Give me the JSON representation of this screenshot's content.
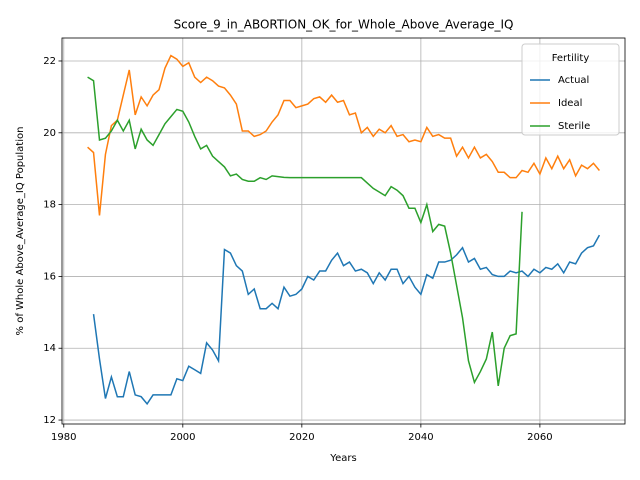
{
  "chart_data": {
    "type": "line",
    "title": "Score_9_in_ABORTION_OK_for_Whole_Above_Average_IQ",
    "x_label": "Years",
    "y_label": "% of Whole Above_Average_IQ Population",
    "legend_title": "Fertility",
    "legend": "upper right",
    "grid": true,
    "xlim": [
      1979.7,
      2074.3
    ],
    "ylim": [
      11.89,
      22.64
    ],
    "xticks": [
      1980,
      2000,
      2020,
      2040,
      2060
    ],
    "yticks": [
      12,
      14,
      16,
      18,
      20,
      22
    ],
    "x": [
      1984,
      1985,
      1986,
      1987,
      1988,
      1989,
      1990,
      1991,
      1992,
      1993,
      1994,
      1995,
      1996,
      1997,
      1998,
      1999,
      2000,
      2001,
      2002,
      2003,
      2004,
      2005,
      2006,
      2007,
      2008,
      2009,
      2010,
      2011,
      2012,
      2013,
      2014,
      2015,
      2016,
      2017,
      2018,
      2019,
      2020,
      2021,
      2022,
      2023,
      2024,
      2025,
      2026,
      2027,
      2028,
      2029,
      2030,
      2031,
      2032,
      2033,
      2034,
      2035,
      2036,
      2037,
      2038,
      2039,
      2040,
      2041,
      2042,
      2043,
      2044,
      2045,
      2046,
      2047,
      2048,
      2049,
      2050,
      2051,
      2052,
      2053,
      2054,
      2055,
      2056,
      2057,
      2058,
      2059,
      2060,
      2061,
      2062,
      2063,
      2064,
      2065,
      2066,
      2067,
      2068,
      2069,
      2070
    ],
    "series": [
      {
        "name": "Actual",
        "color": "#1f77b4",
        "values": [
          null,
          14.95,
          13.7,
          12.6,
          13.2,
          12.65,
          12.65,
          13.35,
          12.7,
          12.65,
          12.45,
          12.7,
          12.7,
          12.7,
          12.7,
          13.15,
          13.1,
          13.5,
          13.4,
          13.3,
          14.15,
          13.95,
          13.65,
          16.75,
          16.65,
          16.3,
          16.15,
          15.5,
          15.65,
          15.1,
          15.1,
          15.25,
          15.1,
          15.7,
          15.45,
          15.5,
          15.65,
          16.0,
          15.9,
          16.15,
          16.15,
          16.45,
          16.65,
          16.3,
          16.4,
          16.15,
          16.2,
          16.1,
          15.8,
          16.1,
          15.9,
          16.2,
          16.2,
          15.8,
          16.0,
          15.7,
          15.5,
          16.05,
          15.95,
          16.4,
          16.4,
          16.45,
          16.6,
          16.8,
          16.4,
          16.5,
          16.2,
          16.25,
          16.05,
          16.0,
          16.0,
          16.15,
          16.1,
          16.15,
          16.0,
          16.2,
          16.1,
          16.25,
          16.2,
          16.35,
          16.1,
          16.4,
          16.35,
          16.65,
          16.8,
          16.85,
          17.15
        ]
      },
      {
        "name": "Ideal",
        "color": "#ff7f0e",
        "values": [
          19.6,
          19.45,
          17.7,
          19.4,
          20.2,
          20.35,
          21.05,
          21.75,
          20.5,
          21.0,
          20.75,
          21.05,
          21.2,
          21.8,
          22.15,
          22.05,
          21.85,
          21.95,
          21.55,
          21.4,
          21.55,
          21.45,
          21.3,
          21.25,
          21.05,
          20.8,
          20.05,
          20.05,
          19.9,
          19.95,
          20.05,
          20.3,
          20.5,
          20.9,
          20.9,
          20.7,
          20.75,
          20.8,
          20.95,
          21.0,
          20.85,
          21.05,
          20.85,
          20.9,
          20.5,
          20.55,
          20.0,
          20.15,
          19.9,
          20.1,
          20.0,
          20.2,
          19.9,
          19.95,
          19.75,
          19.8,
          19.75,
          20.15,
          19.9,
          19.95,
          19.85,
          19.85,
          19.35,
          19.6,
          19.3,
          19.6,
          19.3,
          19.4,
          19.2,
          18.9,
          18.9,
          18.75,
          18.75,
          18.95,
          18.9,
          19.15,
          18.85,
          19.3,
          19.0,
          19.35,
          19.0,
          19.25,
          18.8,
          19.1,
          19.0,
          19.15,
          18.95
        ]
      },
      {
        "name": "Sterile",
        "color": "#2ca02c",
        "values": [
          21.55,
          21.45,
          19.8,
          19.85,
          20.05,
          20.35,
          20.05,
          20.35,
          19.55,
          20.1,
          19.8,
          19.65,
          19.95,
          20.25,
          20.45,
          20.65,
          20.6,
          20.3,
          19.9,
          19.55,
          19.65,
          19.35,
          19.2,
          19.05,
          18.8,
          18.85,
          18.7,
          18.65,
          18.65,
          18.75,
          18.7,
          18.8,
          18.78,
          18.76,
          18.75,
          18.75,
          18.75,
          18.75,
          18.75,
          18.75,
          18.75,
          18.75,
          18.75,
          18.75,
          18.75,
          18.75,
          18.75,
          18.6,
          18.45,
          18.35,
          18.25,
          18.5,
          18.4,
          18.25,
          17.9,
          17.9,
          17.5,
          18.0,
          17.25,
          17.45,
          17.4,
          16.65,
          15.75,
          14.85,
          13.65,
          13.05,
          13.35,
          13.7,
          14.45,
          12.95,
          14.0,
          14.35,
          14.4,
          17.8,
          null,
          null,
          null,
          null,
          null,
          null,
          null,
          null,
          null,
          null,
          null,
          null,
          null
        ]
      }
    ]
  }
}
